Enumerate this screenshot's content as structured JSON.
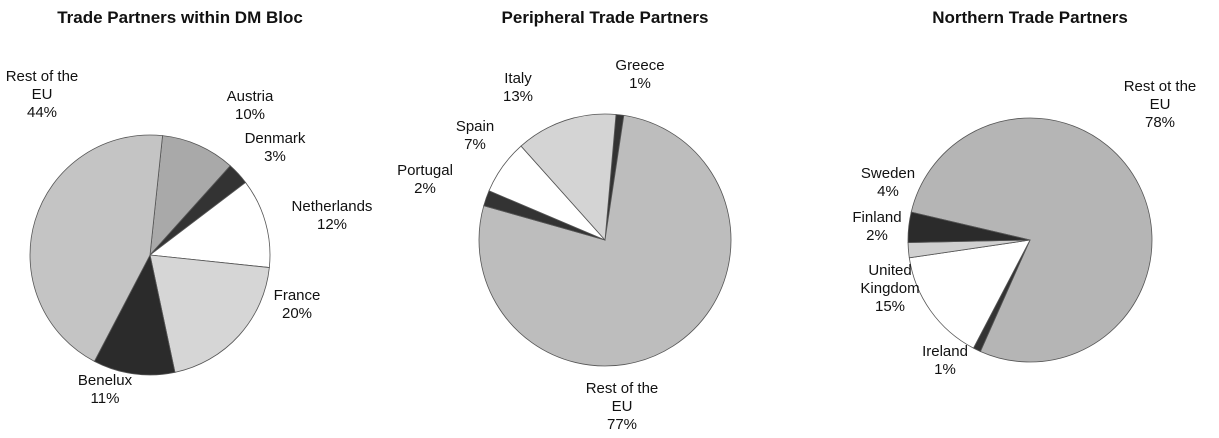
{
  "chart_data": [
    {
      "type": "pie",
      "title": "Trade Partners within DM Bloc",
      "categories": [
        "Austria",
        "Denmark",
        "Netherlands",
        "France",
        "Benelux",
        "Rest of the EU"
      ],
      "values": [
        10,
        3,
        12,
        20,
        11,
        44
      ],
      "value_labels": [
        "10%",
        "3%",
        "12%",
        "20%",
        "11%",
        "44%"
      ],
      "colors": [
        "#a9a9a9",
        "#333333",
        "#ffffff",
        "#d6d6d6",
        "#2b2b2b",
        "#c4c4c4"
      ]
    },
    {
      "type": "pie",
      "title": "Peripheral Trade Partners",
      "categories": [
        "Greece",
        "Rest of the EU",
        "Portugal",
        "Spain",
        "Italy"
      ],
      "values": [
        1,
        77,
        2,
        7,
        13
      ],
      "value_labels": [
        "1%",
        "77%",
        "2%",
        "7%",
        "13%"
      ],
      "colors": [
        "#333333",
        "#bdbdbd",
        "#333333",
        "#ffffff",
        "#d4d4d4"
      ]
    },
    {
      "type": "pie",
      "title": "Northern Trade Partners",
      "categories": [
        "Rest ot the EU",
        "Ireland",
        "United Kingdom",
        "Finland",
        "Sweden"
      ],
      "values": [
        78,
        1,
        15,
        2,
        4
      ],
      "value_labels": [
        "78%",
        "1%",
        "15%",
        "2%",
        "4%"
      ],
      "colors": [
        "#b5b5b5",
        "#333333",
        "#ffffff",
        "#d0d0d0",
        "#2b2b2b"
      ]
    }
  ]
}
